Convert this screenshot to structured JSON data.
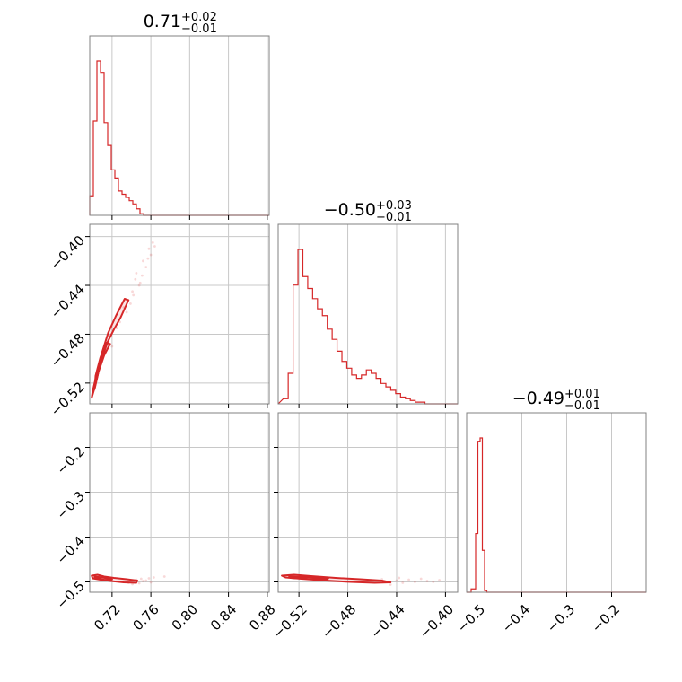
{
  "colors": {
    "series": "#d62728",
    "grid": "#c8c8c8",
    "frame": "#808080"
  },
  "titles": [
    {
      "main": "0.71",
      "sup": "+0.02",
      "sub": "−0.01"
    },
    {
      "main": "−0.50",
      "sup": "+0.03",
      "sub": "−0.01"
    },
    {
      "main": "−0.49",
      "sup": "+0.01",
      "sub": "−0.01"
    }
  ],
  "chart_data": {
    "type": "corner",
    "grid": true,
    "parameters": [
      {
        "range": [
          0.697,
          0.882
        ],
        "ticks": [
          0.72,
          0.76,
          0.8,
          0.84,
          0.88
        ],
        "tick_labels": [
          "0.72",
          "0.76",
          "0.80",
          "0.84",
          "0.88"
        ]
      },
      {
        "range": [
          -0.537,
          -0.39
        ],
        "ticks": [
          -0.52,
          -0.48,
          -0.44,
          -0.4
        ],
        "tick_labels": [
          "−0.52",
          "−0.48",
          "−0.44",
          "−0.40"
        ]
      },
      {
        "range": [
          -0.523,
          -0.123
        ],
        "ticks": [
          -0.5,
          -0.4,
          -0.3,
          -0.2
        ],
        "tick_labels": [
          "−0.5",
          "−0.4",
          "−0.3",
          "−0.2"
        ]
      }
    ],
    "histograms": [
      {
        "param": 0,
        "bin_edges": [
          0.697,
          0.7007,
          0.7044,
          0.7081,
          0.7118,
          0.7155,
          0.7192,
          0.7229,
          0.7266,
          0.7303,
          0.734,
          0.7377,
          0.7414,
          0.7451,
          0.7488,
          0.7525,
          0.7562,
          0.882
        ],
        "counts": [
          12,
          58,
          95,
          88,
          57,
          43,
          28,
          23,
          15,
          13,
          11,
          9,
          7,
          4,
          1,
          0,
          0
        ]
      },
      {
        "param": 1,
        "bin_edges": [
          -0.5328,
          -0.5288,
          -0.5248,
          -0.5208,
          -0.5168,
          -0.5128,
          -0.5088,
          -0.5048,
          -0.5008,
          -0.4968,
          -0.4928,
          -0.4888,
          -0.4848,
          -0.4808,
          -0.4768,
          -0.4728,
          -0.4688,
          -0.4648,
          -0.4608,
          -0.4568,
          -0.4528,
          -0.4488,
          -0.4448,
          -0.4408,
          -0.4368,
          -0.4328,
          -0.4288,
          -0.4248,
          -0.4208,
          -0.4168,
          -0.39
        ],
        "counts": [
          3,
          18,
          70,
          91,
          75,
          68,
          62,
          56,
          52,
          44,
          38,
          31,
          25,
          21,
          17,
          15,
          17,
          20,
          18,
          15,
          12,
          10,
          8,
          6,
          4,
          3,
          2,
          1,
          1,
          0
        ]
      },
      {
        "param": 2,
        "bin_edges": [
          -0.523,
          -0.513,
          -0.503,
          -0.498,
          -0.493,
          -0.488,
          -0.483,
          -0.478,
          -0.123
        ],
        "counts": [
          0,
          2,
          35,
          90,
          92,
          25,
          1,
          0
        ]
      }
    ],
    "scatter_2d": [
      {
        "x_param": 0,
        "y_param": 1,
        "contour_levels": [
          [
            [
              0.699,
              -0.532
            ],
            [
              0.702,
              -0.524
            ],
            [
              0.708,
              -0.504
            ],
            [
              0.715,
              -0.487
            ],
            [
              0.722,
              -0.476
            ],
            [
              0.729,
              -0.466
            ],
            [
              0.737,
              -0.452
            ],
            [
              0.733,
              -0.451
            ],
            [
              0.724,
              -0.465
            ],
            [
              0.716,
              -0.479
            ],
            [
              0.71,
              -0.494
            ],
            [
              0.704,
              -0.513
            ],
            [
              0.7,
              -0.527
            ]
          ],
          [
            [
              0.702,
              -0.525
            ],
            [
              0.706,
              -0.511
            ],
            [
              0.712,
              -0.497
            ],
            [
              0.718,
              -0.488
            ],
            [
              0.714,
              -0.487
            ],
            [
              0.708,
              -0.499
            ],
            [
              0.703,
              -0.514
            ]
          ]
        ],
        "points": [
          [
            0.745,
            -0.43
          ],
          [
            0.752,
            -0.42
          ],
          [
            0.758,
            -0.41
          ],
          [
            0.762,
            -0.405
          ],
          [
            0.748,
            -0.44
          ],
          [
            0.755,
            -0.425
          ],
          [
            0.741,
            -0.445
          ],
          [
            0.76,
            -0.415
          ],
          [
            0.744,
            -0.435
          ],
          [
            0.751,
            -0.432
          ],
          [
            0.739,
            -0.455
          ],
          [
            0.757,
            -0.418
          ],
          [
            0.764,
            -0.408
          ],
          [
            0.749,
            -0.438
          ],
          [
            0.735,
            -0.462
          ],
          [
            0.728,
            -0.47
          ],
          [
            0.732,
            -0.458
          ],
          [
            0.72,
            -0.49
          ],
          [
            0.725,
            -0.475
          ],
          [
            0.742,
            -0.448
          ]
        ]
      },
      {
        "x_param": 0,
        "y_param": 2,
        "contour_levels": [
          [
            [
              0.699,
              -0.486
            ],
            [
              0.705,
              -0.484
            ],
            [
              0.712,
              -0.488
            ],
            [
              0.722,
              -0.491
            ],
            [
              0.735,
              -0.494
            ],
            [
              0.746,
              -0.497
            ],
            [
              0.745,
              -0.502
            ],
            [
              0.732,
              -0.501
            ],
            [
              0.719,
              -0.498
            ],
            [
              0.708,
              -0.495
            ],
            [
              0.7,
              -0.492
            ]
          ],
          [
            [
              0.702,
              -0.488
            ],
            [
              0.71,
              -0.49
            ],
            [
              0.72,
              -0.494
            ],
            [
              0.718,
              -0.497
            ],
            [
              0.708,
              -0.494
            ],
            [
              0.702,
              -0.491
            ]
          ]
        ],
        "points": [
          [
            0.745,
            -0.495
          ],
          [
            0.752,
            -0.498
          ],
          [
            0.758,
            -0.492
          ],
          [
            0.76,
            -0.501
          ],
          [
            0.748,
            -0.503
          ],
          [
            0.755,
            -0.497
          ],
          [
            0.763,
            -0.49
          ],
          [
            0.741,
            -0.505
          ],
          [
            0.774,
            -0.488
          ],
          [
            0.75,
            -0.493
          ],
          [
            0.737,
            -0.502
          ]
        ]
      },
      {
        "x_param": 1,
        "y_param": 2,
        "contour_levels": [
          [
            [
              -0.534,
              -0.486
            ],
            [
              -0.524,
              -0.484
            ],
            [
              -0.51,
              -0.487
            ],
            [
              -0.49,
              -0.491
            ],
            [
              -0.47,
              -0.494
            ],
            [
              -0.452,
              -0.497
            ],
            [
              -0.445,
              -0.501
            ],
            [
              -0.458,
              -0.502
            ],
            [
              -0.478,
              -0.5
            ],
            [
              -0.498,
              -0.497
            ],
            [
              -0.518,
              -0.493
            ],
            [
              -0.531,
              -0.49
            ]
          ],
          [
            [
              -0.528,
              -0.488
            ],
            [
              -0.512,
              -0.489
            ],
            [
              -0.496,
              -0.492
            ],
            [
              -0.498,
              -0.495
            ],
            [
              -0.514,
              -0.493
            ],
            [
              -0.527,
              -0.491
            ]
          ]
        ],
        "points": [
          [
            -0.448,
            -0.5
          ],
          [
            -0.44,
            -0.497
          ],
          [
            -0.435,
            -0.502
          ],
          [
            -0.43,
            -0.495
          ],
          [
            -0.425,
            -0.5
          ],
          [
            -0.42,
            -0.493
          ],
          [
            -0.415,
            -0.498
          ],
          [
            -0.41,
            -0.5
          ],
          [
            -0.405,
            -0.496
          ],
          [
            -0.445,
            -0.506
          ],
          [
            -0.452,
            -0.494
          ],
          [
            -0.438,
            -0.491
          ]
        ]
      }
    ]
  }
}
